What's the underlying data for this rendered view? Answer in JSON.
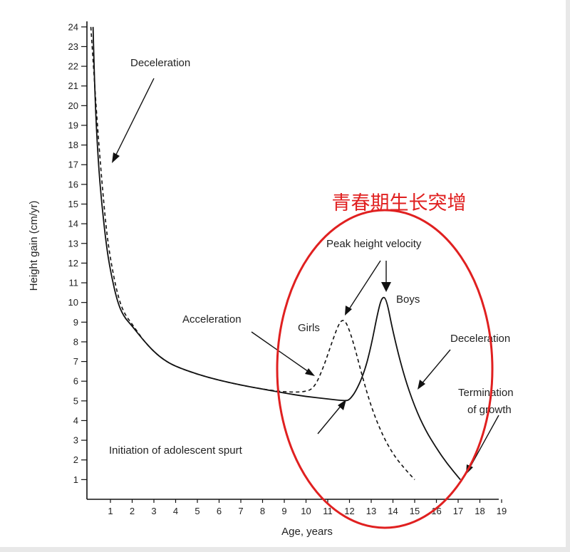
{
  "chart_data": {
    "type": "line",
    "xlabel": "Age, years",
    "ylabel": "Height gain (cm/yr)",
    "xlim": [
      0,
      19
    ],
    "ylim": [
      0,
      24
    ],
    "xticks": [
      1,
      2,
      3,
      4,
      5,
      6,
      7,
      8,
      9,
      10,
      11,
      12,
      13,
      14,
      15,
      16,
      17,
      18,
      19
    ],
    "yticks": [
      1,
      2,
      3,
      4,
      5,
      6,
      7,
      8,
      9,
      10,
      11,
      12,
      13,
      14,
      15,
      16,
      17,
      18,
      19,
      20,
      21,
      22,
      23,
      24
    ],
    "grid": false,
    "series": [
      {
        "name": "Boys",
        "style": "solid",
        "color": "#111111",
        "points": [
          [
            0.2,
            24
          ],
          [
            0.3,
            20
          ],
          [
            0.45,
            17
          ],
          [
            0.6,
            15
          ],
          [
            0.8,
            13
          ],
          [
            1,
            11.6
          ],
          [
            1.3,
            10.1
          ],
          [
            1.6,
            9.3
          ],
          [
            2,
            8.8
          ],
          [
            2.5,
            8.1
          ],
          [
            3,
            7.5
          ],
          [
            3.5,
            7.05
          ],
          [
            4,
            6.75
          ],
          [
            5,
            6.35
          ],
          [
            6,
            6.05
          ],
          [
            7,
            5.8
          ],
          [
            8,
            5.6
          ],
          [
            9,
            5.4
          ],
          [
            10,
            5.22
          ],
          [
            11,
            5.1
          ],
          [
            11.8,
            5.0
          ],
          [
            12,
            5.05
          ],
          [
            12.3,
            5.5
          ],
          [
            12.7,
            6.5
          ],
          [
            13,
            7.8
          ],
          [
            13.3,
            9.5
          ],
          [
            13.5,
            10.3
          ],
          [
            13.7,
            10.2
          ],
          [
            14,
            8.5
          ],
          [
            14.5,
            6.3
          ],
          [
            15,
            4.7
          ],
          [
            15.5,
            3.5
          ],
          [
            16,
            2.6
          ],
          [
            16.5,
            1.8
          ],
          [
            17.1,
            1.0
          ]
        ]
      },
      {
        "name": "Girls",
        "style": "dashed",
        "color": "#111111",
        "points": [
          [
            0.1,
            24
          ],
          [
            0.25,
            21.5
          ],
          [
            0.4,
            19
          ],
          [
            0.6,
            16.2
          ],
          [
            0.8,
            13.8
          ],
          [
            1,
            12.2
          ],
          [
            1.3,
            10.5
          ],
          [
            1.6,
            9.5
          ],
          [
            2,
            8.9
          ],
          [
            2.5,
            8.1
          ],
          [
            3,
            7.5
          ],
          [
            3.5,
            7.05
          ],
          [
            4,
            6.75
          ],
          [
            5,
            6.35
          ],
          [
            6,
            6.05
          ],
          [
            7,
            5.8
          ],
          [
            8,
            5.6
          ],
          [
            9,
            5.45
          ],
          [
            10,
            5.45
          ],
          [
            10.4,
            5.7
          ],
          [
            10.8,
            6.7
          ],
          [
            11.2,
            8.0
          ],
          [
            11.5,
            8.9
          ],
          [
            11.7,
            9.15
          ],
          [
            11.9,
            8.9
          ],
          [
            12.2,
            7.9
          ],
          [
            12.6,
            6.2
          ],
          [
            13,
            4.7
          ],
          [
            13.5,
            3.3
          ],
          [
            14,
            2.3
          ],
          [
            14.5,
            1.6
          ],
          [
            15,
            1.0
          ]
        ]
      }
    ],
    "annotations": {
      "deceleration_early": "Deceleration",
      "acceleration": "Acceleration",
      "girls": "Girls",
      "boys": "Boys",
      "peak_height_velocity": "Peak height velocity",
      "deceleration_late": "Deceleration",
      "termination_line1": "Termination",
      "termination_line2": "of growth",
      "initiation": "Initiation of adolescent spurt"
    },
    "highlight_label": "青春期生长突增",
    "highlight_color": "#e02020"
  }
}
